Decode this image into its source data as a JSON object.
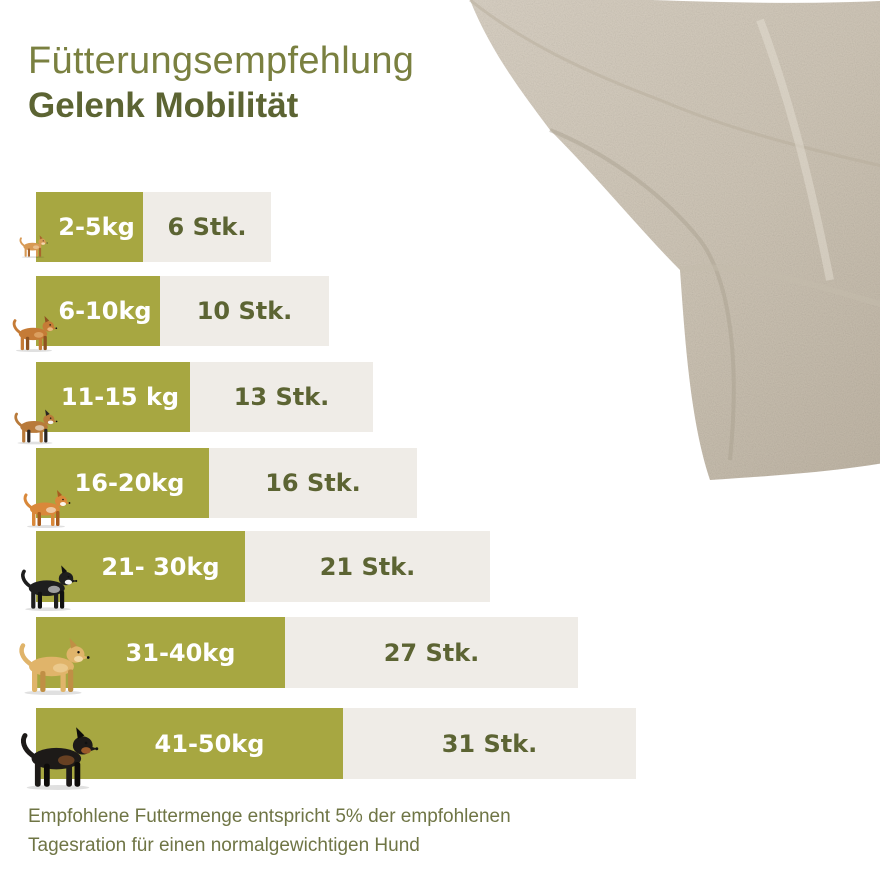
{
  "title": "Fütterungsempfehlung",
  "subtitle": "Gelenk Mobilität",
  "chart_data": {
    "type": "bar",
    "orientation": "horizontal",
    "categories": [
      "2-5kg",
      "6-10kg",
      "11-15 kg",
      "16-20kg",
      "21- 30kg",
      "31-40kg",
      "41-50kg"
    ],
    "values": [
      6,
      10,
      13,
      16,
      21,
      27,
      31
    ],
    "value_labels": [
      "6 Stk.",
      "10 Stk.",
      "13 Stk.",
      "16 Stk.",
      "21 Stk.",
      "27 Stk.",
      "31 Stk."
    ],
    "dog_icons": [
      "chihuahua-icon",
      "small-brown-dog-icon",
      "beagle-icon",
      "corgi-icon",
      "border-collie-icon",
      "golden-retriever-icon",
      "rottweiler-icon"
    ],
    "colors": {
      "weight_bar": "#a7a741",
      "count_bar": "#efece7",
      "label_dark": "#5c6433",
      "label_light": "#ffffff"
    },
    "grid": false
  },
  "footnote": {
    "line1": "Empfohlene Futtermenge entspricht 5% der empfohlenen",
    "line2": "Tagesration für einen normalgewichtigen Hund"
  }
}
